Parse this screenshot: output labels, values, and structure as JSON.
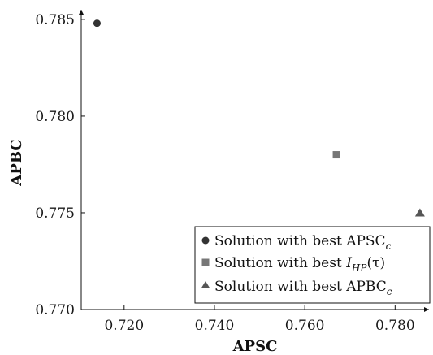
{
  "chart_data": {
    "type": "scatter",
    "xlabel": "APSC",
    "ylabel": "APBC",
    "xlim": [
      0.7105,
      0.7875
    ],
    "ylim": [
      0.77,
      0.7855
    ],
    "xticks": [
      "0.720",
      "0.740",
      "0.760",
      "0.780"
    ],
    "xtick_values": [
      0.72,
      0.74,
      0.76,
      0.78
    ],
    "yticks": [
      "0.770",
      "0.775",
      "0.780",
      "0.785"
    ],
    "ytick_values": [
      0.77,
      0.775,
      0.78,
      0.785
    ],
    "grid": false,
    "legend_position": "bottom-right",
    "series": [
      {
        "name": "Solution with best APSCc",
        "legend_main": "Solution with best APSC",
        "legend_sub": "c",
        "marker": "circle",
        "color": "#333333",
        "points": [
          {
            "x": 0.714,
            "y": 0.7848
          }
        ]
      },
      {
        "name": "Solution with best IHP(τ)",
        "legend_main": "Solution with best ",
        "legend_italic": "I",
        "legend_sub": "HP",
        "legend_tail": "(τ)",
        "marker": "square",
        "color": "#777777",
        "points": [
          {
            "x": 0.767,
            "y": 0.778
          }
        ]
      },
      {
        "name": "Solution with best APBCc",
        "legend_main": "Solution with best APBC",
        "legend_sub": "c",
        "marker": "triangle",
        "color": "#555555",
        "points": [
          {
            "x": 0.7855,
            "y": 0.775
          }
        ]
      }
    ]
  }
}
